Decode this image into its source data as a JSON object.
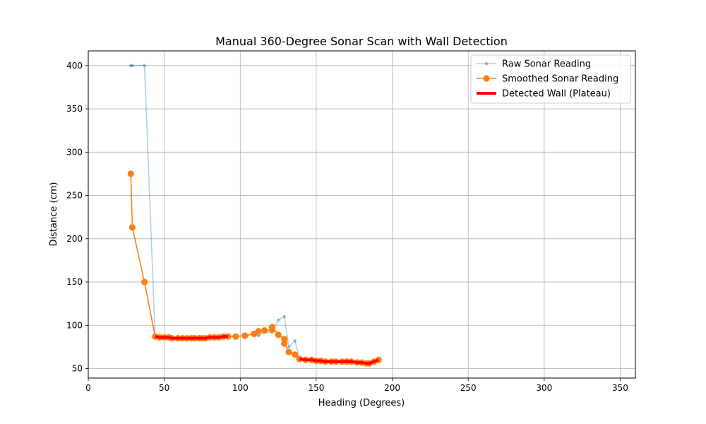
{
  "chart_data": {
    "type": "line",
    "title": "Manual 360-Degree Sonar Scan with Wall Detection",
    "xlabel": "Heading (Degrees)",
    "ylabel": "Distance (cm)",
    "xlim": [
      0,
      360
    ],
    "ylim": [
      39,
      417
    ],
    "xticks": [
      0,
      50,
      100,
      150,
      200,
      250,
      300,
      350
    ],
    "yticks": [
      50,
      100,
      150,
      200,
      250,
      300,
      350,
      400
    ],
    "grid": true,
    "legend": "top-right",
    "series": [
      {
        "name": "Raw Sonar Reading",
        "color": "#1f77b4",
        "style": "thin-line-small-markers",
        "points": [
          [
            28,
            400
          ],
          [
            29,
            400
          ],
          [
            37,
            400
          ],
          [
            44,
            87
          ],
          [
            47,
            86
          ],
          [
            50,
            86
          ],
          [
            53,
            86
          ],
          [
            55,
            85
          ],
          [
            59,
            85
          ],
          [
            62,
            85
          ],
          [
            65,
            85
          ],
          [
            68,
            85
          ],
          [
            70,
            85
          ],
          [
            73,
            85
          ],
          [
            75,
            85
          ],
          [
            77,
            85
          ],
          [
            80,
            86
          ],
          [
            83,
            86
          ],
          [
            86,
            86
          ],
          [
            89,
            87
          ],
          [
            92,
            87
          ],
          [
            97,
            87
          ],
          [
            103,
            88
          ],
          [
            109,
            90
          ],
          [
            112,
            88
          ],
          [
            116,
            92
          ],
          [
            121,
            92
          ],
          [
            125,
            106
          ],
          [
            129,
            110
          ],
          [
            132,
            75
          ],
          [
            136,
            82
          ],
          [
            139,
            61
          ],
          [
            143,
            60
          ],
          [
            147,
            60
          ],
          [
            150,
            59
          ],
          [
            153,
            59
          ],
          [
            156,
            58
          ],
          [
            160,
            58
          ],
          [
            163,
            58
          ],
          [
            167,
            58
          ],
          [
            170,
            58
          ],
          [
            173,
            58
          ],
          [
            177,
            57
          ],
          [
            180,
            57
          ],
          [
            183,
            56
          ],
          [
            185,
            56
          ],
          [
            188,
            58
          ],
          [
            191,
            60
          ]
        ]
      },
      {
        "name": "Smoothed Sonar Reading",
        "color": "#ff7f0e",
        "style": "line-large-markers",
        "points": [
          [
            28,
            275
          ],
          [
            29,
            213
          ],
          [
            37,
            150
          ],
          [
            44,
            87
          ],
          [
            47,
            86
          ],
          [
            50,
            86
          ],
          [
            53,
            86
          ],
          [
            55,
            85
          ],
          [
            59,
            85
          ],
          [
            62,
            85
          ],
          [
            65,
            85
          ],
          [
            68,
            85
          ],
          [
            70,
            85
          ],
          [
            73,
            85
          ],
          [
            75,
            85
          ],
          [
            77,
            85
          ],
          [
            80,
            86
          ],
          [
            83,
            86
          ],
          [
            86,
            86
          ],
          [
            89,
            87
          ],
          [
            92,
            87
          ],
          [
            97,
            87
          ],
          [
            103,
            88
          ],
          [
            109,
            90
          ],
          [
            112,
            93
          ],
          [
            116,
            94
          ],
          [
            121,
            95
          ],
          [
            121,
            98
          ],
          [
            125,
            89
          ],
          [
            129,
            84
          ],
          [
            129,
            79
          ],
          [
            132,
            69
          ],
          [
            136,
            66
          ],
          [
            139,
            61
          ],
          [
            143,
            60
          ],
          [
            147,
            60
          ],
          [
            150,
            59
          ],
          [
            153,
            59
          ],
          [
            156,
            58
          ],
          [
            160,
            58
          ],
          [
            163,
            58
          ],
          [
            167,
            58
          ],
          [
            170,
            58
          ],
          [
            173,
            58
          ],
          [
            177,
            57
          ],
          [
            180,
            57
          ],
          [
            183,
            56
          ],
          [
            185,
            56
          ],
          [
            188,
            58
          ],
          [
            191,
            60
          ]
        ]
      },
      {
        "name": "Detected Wall (Plateau)",
        "color": "#ff0000",
        "style": "thick-line",
        "segments": [
          [
            [
              44,
              87
            ],
            [
              47,
              86
            ],
            [
              50,
              86
            ],
            [
              53,
              86
            ],
            [
              55,
              85
            ],
            [
              59,
              85
            ],
            [
              62,
              85
            ],
            [
              65,
              85
            ],
            [
              68,
              85
            ],
            [
              70,
              85
            ],
            [
              73,
              85
            ],
            [
              75,
              85
            ],
            [
              77,
              85
            ],
            [
              80,
              86
            ],
            [
              83,
              86
            ],
            [
              86,
              86
            ],
            [
              89,
              87
            ],
            [
              92,
              87
            ]
          ],
          [
            [
              139,
              61
            ],
            [
              143,
              60
            ],
            [
              147,
              60
            ],
            [
              150,
              59
            ],
            [
              153,
              59
            ],
            [
              156,
              58
            ],
            [
              160,
              58
            ],
            [
              163,
              58
            ],
            [
              167,
              58
            ],
            [
              170,
              58
            ],
            [
              173,
              58
            ],
            [
              177,
              57
            ],
            [
              180,
              57
            ],
            [
              183,
              56
            ],
            [
              185,
              56
            ],
            [
              188,
              58
            ],
            [
              191,
              60
            ]
          ]
        ]
      }
    ]
  }
}
